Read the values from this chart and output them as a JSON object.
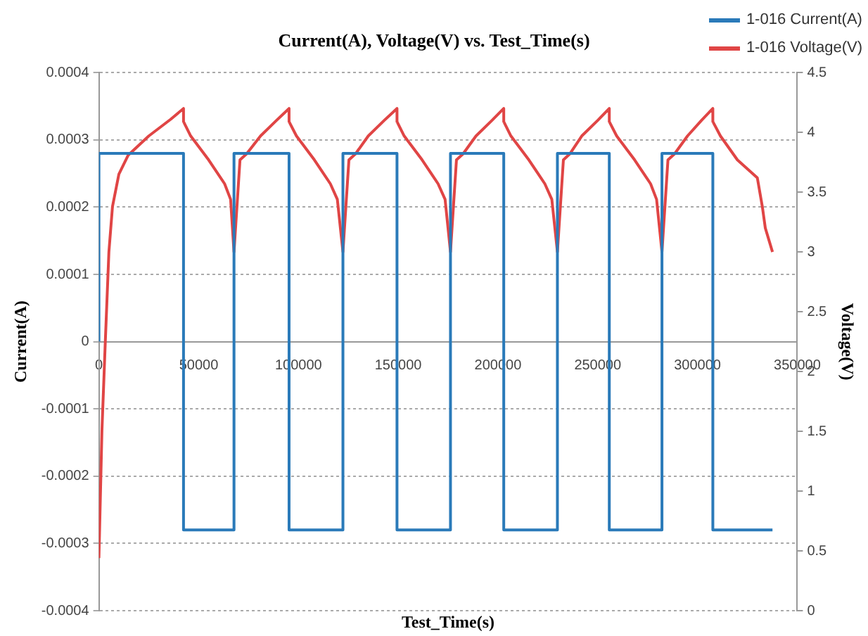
{
  "chart_data": {
    "type": "line",
    "title": "Current(A), Voltage(V) vs. Test_Time(s)",
    "xlabel": "Test_Time(s)",
    "ylabel": "Current(A)",
    "y2label": "Voltage(V)",
    "xlim": [
      0,
      350000
    ],
    "xticks": [
      0,
      50000,
      100000,
      150000,
      200000,
      250000,
      300000,
      350000
    ],
    "ylim": [
      -0.0004,
      0.0004
    ],
    "yticks": [
      -0.0004,
      -0.0003,
      -0.0002,
      -0.0001,
      0,
      0.0001,
      0.0002,
      0.0003,
      0.0004
    ],
    "y2lim": [
      0,
      4.5
    ],
    "y2ticks": [
      0,
      0.5,
      1,
      1.5,
      2,
      2.5,
      3,
      3.5,
      4,
      4.5
    ],
    "grid": "y",
    "legend": "top right",
    "marker": "none",
    "series": [
      {
        "name": "1-016 Current(A)",
        "type": "step",
        "color": "#2a7ab9",
        "x": [
          0,
          0,
          42400,
          67700,
          95300,
          122300,
          149400,
          176200,
          202900,
          229800,
          255800,
          282200,
          307700,
          337600
        ],
        "values": [
          0,
          0.00028,
          -0.00028,
          0.00028,
          -0.00028,
          0.00028,
          -0.00028,
          0.00028,
          -0.00028,
          0.00028,
          -0.00028,
          0.00028,
          -0.00028,
          -0.00028
        ]
      },
      {
        "name": "1-016 Voltage(V)",
        "type": "line",
        "axis": "y2",
        "color": "#e04545",
        "x": [
          0,
          1500,
          3200,
          5000,
          6800,
          10000,
          14700,
          25000,
          36000,
          42400,
          42400,
          46000,
          55000,
          63000,
          66000,
          67700,
          67700,
          70700,
          74000,
          81000,
          89000,
          95300,
          95300,
          99000,
          108000,
          116000,
          119500,
          122300,
          122300,
          125300,
          128600,
          135000,
          143000,
          149400,
          149400,
          153000,
          162000,
          170000,
          173500,
          176200,
          176200,
          179200,
          182500,
          189000,
          197000,
          202900,
          202900,
          206500,
          215500,
          223500,
          227000,
          229800,
          229800,
          232800,
          236000,
          242000,
          250000,
          255800,
          255800,
          259500,
          268500,
          276500,
          279500,
          282200,
          282200,
          285200,
          288500,
          295000,
          302000,
          307700,
          307700,
          311500,
          320000,
          330000,
          332500,
          334000,
          337600
        ],
        "values": [
          0.44,
          1.5,
          2.25,
          3.0,
          3.38,
          3.65,
          3.81,
          3.97,
          4.11,
          4.2,
          4.09,
          3.97,
          3.77,
          3.57,
          3.44,
          3.0,
          3.0,
          3.77,
          3.82,
          3.97,
          4.1,
          4.2,
          4.09,
          3.97,
          3.77,
          3.57,
          3.44,
          3.0,
          3.0,
          3.77,
          3.82,
          3.97,
          4.1,
          4.2,
          4.09,
          3.97,
          3.77,
          3.57,
          3.44,
          3.0,
          3.0,
          3.77,
          3.82,
          3.97,
          4.1,
          4.2,
          4.09,
          3.97,
          3.77,
          3.57,
          3.44,
          3.0,
          3.0,
          3.77,
          3.82,
          3.97,
          4.1,
          4.2,
          4.09,
          3.97,
          3.77,
          3.57,
          3.44,
          3.0,
          3.0,
          3.77,
          3.82,
          3.97,
          4.1,
          4.2,
          4.09,
          3.97,
          3.77,
          3.62,
          3.38,
          3.2,
          3.0
        ]
      }
    ]
  }
}
